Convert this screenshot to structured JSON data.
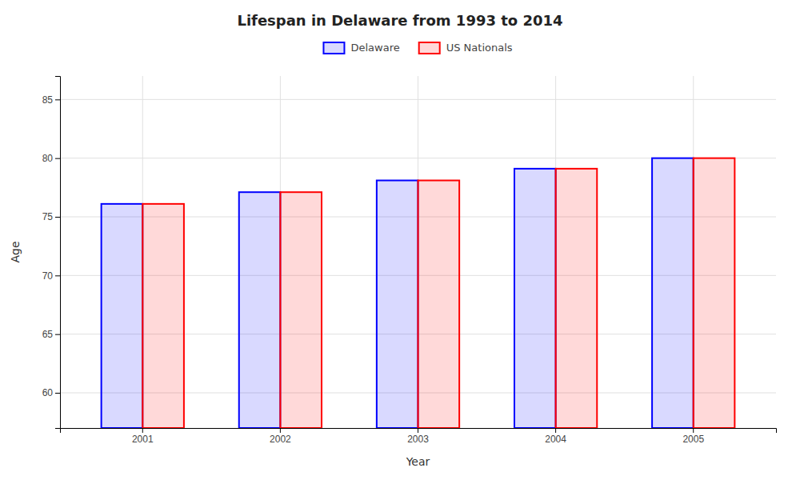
{
  "chart_data": {
    "type": "bar",
    "title": "Lifespan in Delaware from 1993 to 2014",
    "xlabel": "Year",
    "ylabel": "Age",
    "categories": [
      "2001",
      "2002",
      "2003",
      "2004",
      "2005"
    ],
    "series": [
      {
        "name": "Delaware",
        "color": "#0000ff",
        "values": [
          76.1,
          77.1,
          78.1,
          79.1,
          80.0
        ]
      },
      {
        "name": "US Nationals",
        "color": "#ff0000",
        "values": [
          76.1,
          77.1,
          78.1,
          79.1,
          80.0
        ]
      }
    ],
    "ylim": [
      57,
      87
    ],
    "yticks": [
      60,
      65,
      70,
      75,
      80,
      85
    ],
    "grid": true,
    "legend": "top"
  }
}
